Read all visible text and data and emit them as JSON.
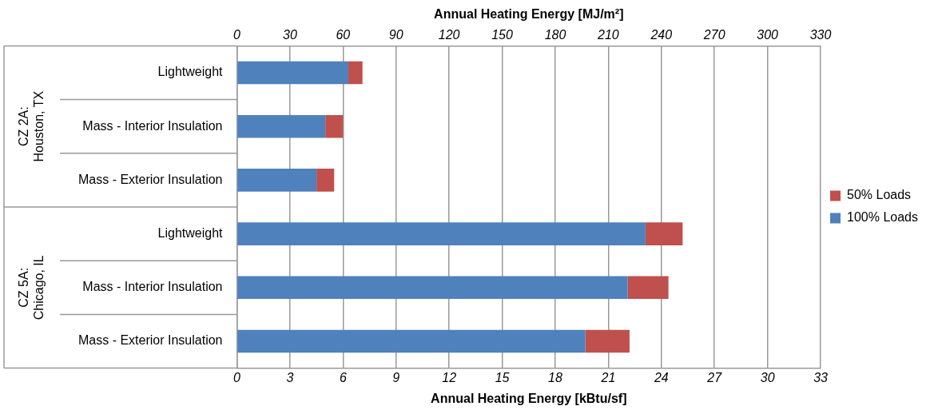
{
  "chart_data": {
    "type": "bar",
    "orientation": "horizontal",
    "stacked": true,
    "xlabel": "Annual Heating Energy [kBtu/sf]",
    "x2label": "Annual Heating Energy [MJ/m²]",
    "categories": [
      "Lightweight",
      "Mass - Interior Insulation",
      "Mass - Exterior Insulation",
      "Lightweight",
      "Mass - Interior Insulation",
      "Mass - Exterior Insulation"
    ],
    "series": [
      {
        "name": "100% Loads",
        "color": "#4f81bd",
        "values": [
          6.3,
          5.0,
          4.5,
          23.1,
          22.1,
          19.7
        ]
      },
      {
        "name": "50% Loads",
        "color": "#c0504d",
        "values": [
          0.8,
          1.0,
          1.0,
          2.1,
          2.3,
          2.5
        ]
      }
    ],
    "xlim": [
      0,
      33
    ],
    "xticks": [
      0,
      3,
      6,
      9,
      12,
      15,
      18,
      21,
      24,
      27,
      30,
      33
    ],
    "x2lim": [
      0,
      330
    ],
    "x2ticks": [
      0,
      30,
      60,
      90,
      120,
      150,
      180,
      210,
      240,
      270,
      300,
      330
    ],
    "grid": "x",
    "legend": "right",
    "annotations": [
      "CZ 2A:\nHouston, TX",
      "CZ 5A:\nChicago, IL"
    ]
  }
}
